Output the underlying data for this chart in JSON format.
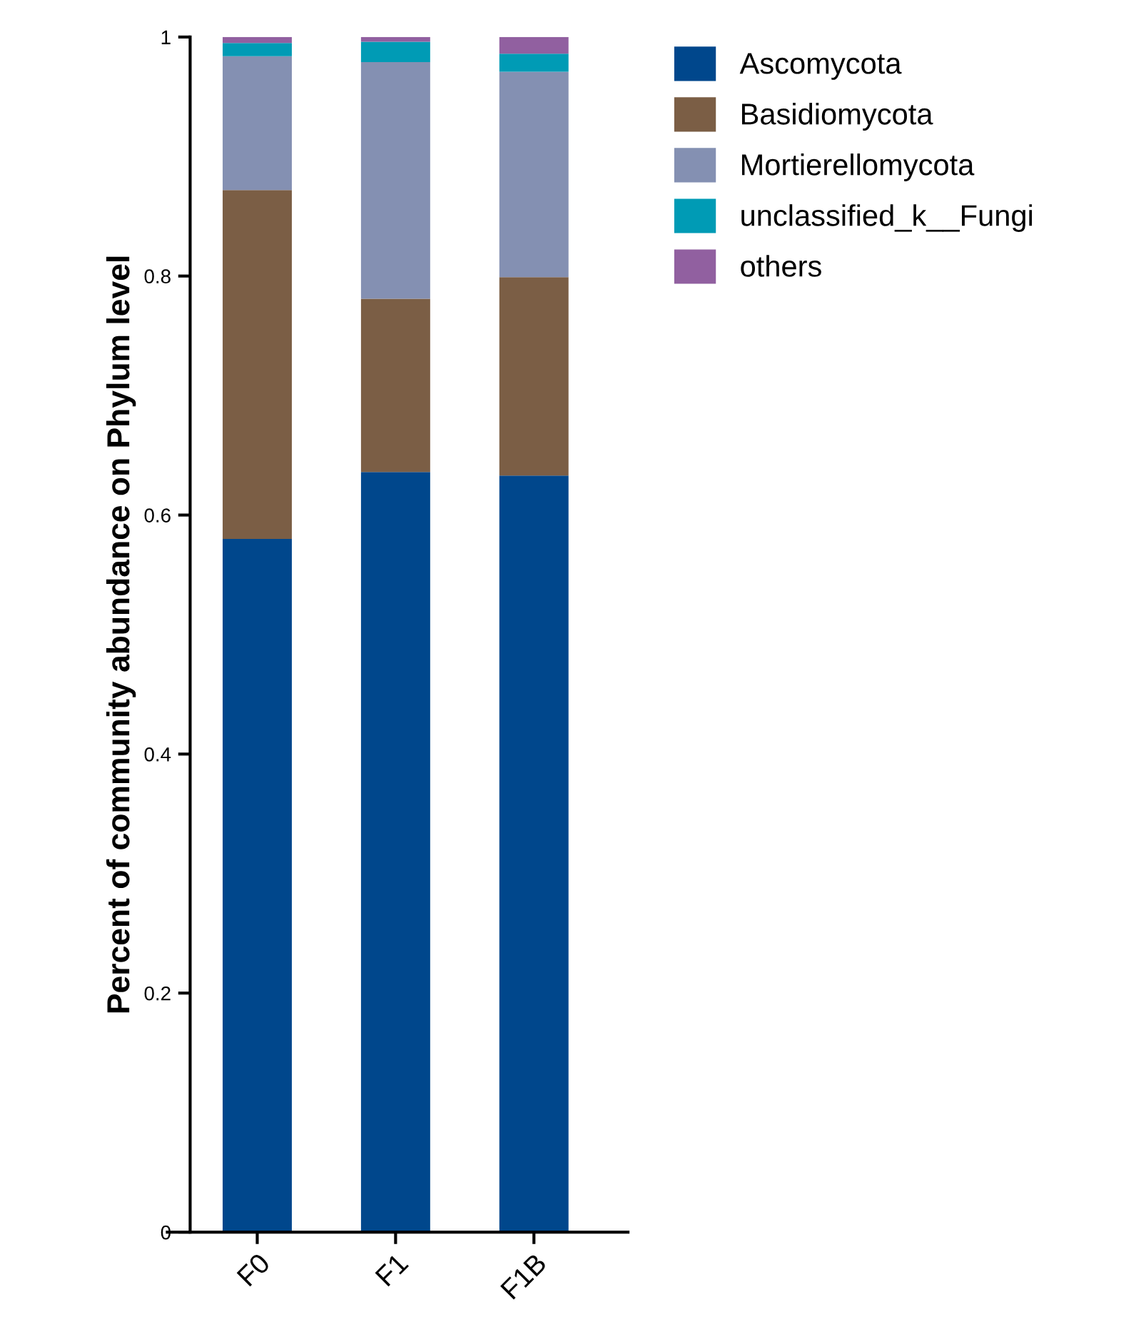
{
  "chart_data": {
    "type": "bar",
    "stacked": true,
    "ylabel": "Percent of community abundance on Phylum level",
    "categories": [
      "F0",
      "F1",
      "F1B"
    ],
    "series": [
      {
        "name": "Ascomycota",
        "color": "#00478c",
        "values": [
          0.58,
          0.636,
          0.633
        ]
      },
      {
        "name": "Basidiomycota",
        "color": "#7b5e45",
        "values": [
          0.292,
          0.145,
          0.166
        ]
      },
      {
        "name": "Mortierellomycota",
        "color": "#8490b2",
        "values": [
          0.112,
          0.198,
          0.172
        ]
      },
      {
        "name": "unclassified_k__Fungi",
        "color": "#009bb5",
        "values": [
          0.011,
          0.017,
          0.015
        ]
      },
      {
        "name": "others",
        "color": "#9160a0",
        "values": [
          0.005,
          0.004,
          0.014
        ]
      }
    ],
    "ylim": [
      0,
      1
    ],
    "yticks": [
      0,
      0.2,
      0.4,
      0.6,
      0.8,
      1
    ],
    "grid": false,
    "legend": "top right"
  }
}
